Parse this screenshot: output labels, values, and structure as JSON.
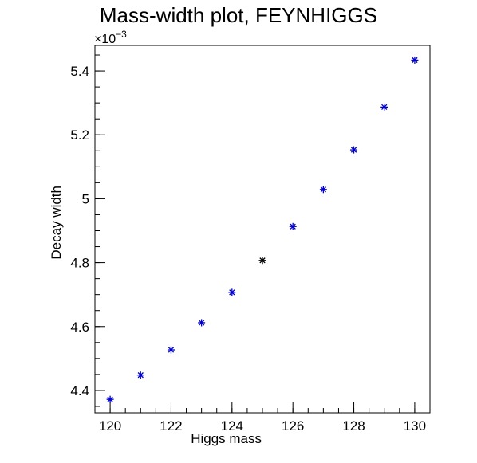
{
  "chart_data": {
    "type": "scatter",
    "title": "Mass-width plot, FEYNHIGGS",
    "xlabel": "Higgs mass",
    "ylabel": "Decay width",
    "y_multiplier_base": "×10",
    "y_multiplier_exponent": "−3",
    "xlim": [
      119.5,
      130.5
    ],
    "ylim": [
      4.33,
      5.48
    ],
    "x_ticks": [
      120,
      122,
      124,
      126,
      128,
      130
    ],
    "x_tick_labels": [
      "120",
      "122",
      "124",
      "126",
      "128",
      "130"
    ],
    "x_minor_step": 0.5,
    "y_ticks": [
      4.4,
      4.6,
      4.8,
      5.0,
      5.2,
      5.4
    ],
    "y_tick_labels": [
      "4.4",
      "4.6",
      "4.8",
      "5",
      "5.2",
      "5.4"
    ],
    "y_minor_step": 0.05,
    "grid": false,
    "marker": "asterisk",
    "marker_color": "#0000cc",
    "highlight_color": "#000000",
    "x": [
      120,
      121,
      122,
      123,
      124,
      125,
      126,
      127,
      128,
      129,
      130
    ],
    "y": [
      4.372,
      4.448,
      4.527,
      4.612,
      4.707,
      4.807,
      4.913,
      5.029,
      5.153,
      5.287,
      5.434
    ],
    "point_colors": [
      "#0000cc",
      "#0000cc",
      "#0000cc",
      "#0000cc",
      "#0000cc",
      "#000000",
      "#0000cc",
      "#0000cc",
      "#0000cc",
      "#0000cc",
      "#0000cc"
    ]
  }
}
